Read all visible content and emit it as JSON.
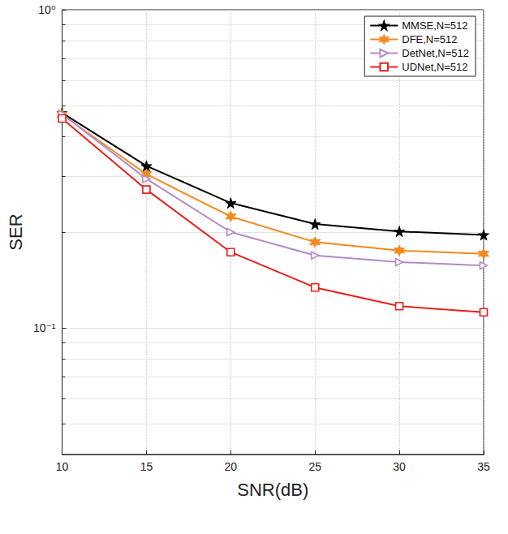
{
  "chart_data": {
    "type": "line",
    "x_label": "SNR(dB)",
    "y_label": "SER",
    "x": [
      10,
      15,
      20,
      25,
      30,
      35
    ],
    "series": [
      {
        "name": "MMSE,N=512",
        "color": "#000000",
        "marker": "star",
        "values": [
          0.474,
          0.323,
          0.247,
          0.212,
          0.201,
          0.196
        ]
      },
      {
        "name": "DFE,N=512",
        "color": "#f28a1e",
        "marker": "hexagram",
        "values": [
          0.468,
          0.304,
          0.224,
          0.186,
          0.175,
          0.171
        ]
      },
      {
        "name": "DetNet,N=512",
        "color": "#b48ac8",
        "marker": "triangle-right",
        "values": [
          0.47,
          0.294,
          0.2,
          0.169,
          0.161,
          0.157
        ]
      },
      {
        "name": "UDNet,N=512",
        "color": "#e8201a",
        "marker": "square",
        "values": [
          0.455,
          0.272,
          0.173,
          0.134,
          0.117,
          0.112
        ]
      }
    ],
    "xlim": [
      10,
      35
    ],
    "xticks": [
      10,
      15,
      20,
      25,
      30,
      35
    ],
    "ylim": [
      0.04,
      1
    ],
    "yticks": [
      {
        "value": 0.1,
        "label": "10⁻¹"
      },
      {
        "value": 1,
        "label": "10⁰"
      }
    ],
    "log": "y",
    "grid": true,
    "legend": "upper right"
  }
}
